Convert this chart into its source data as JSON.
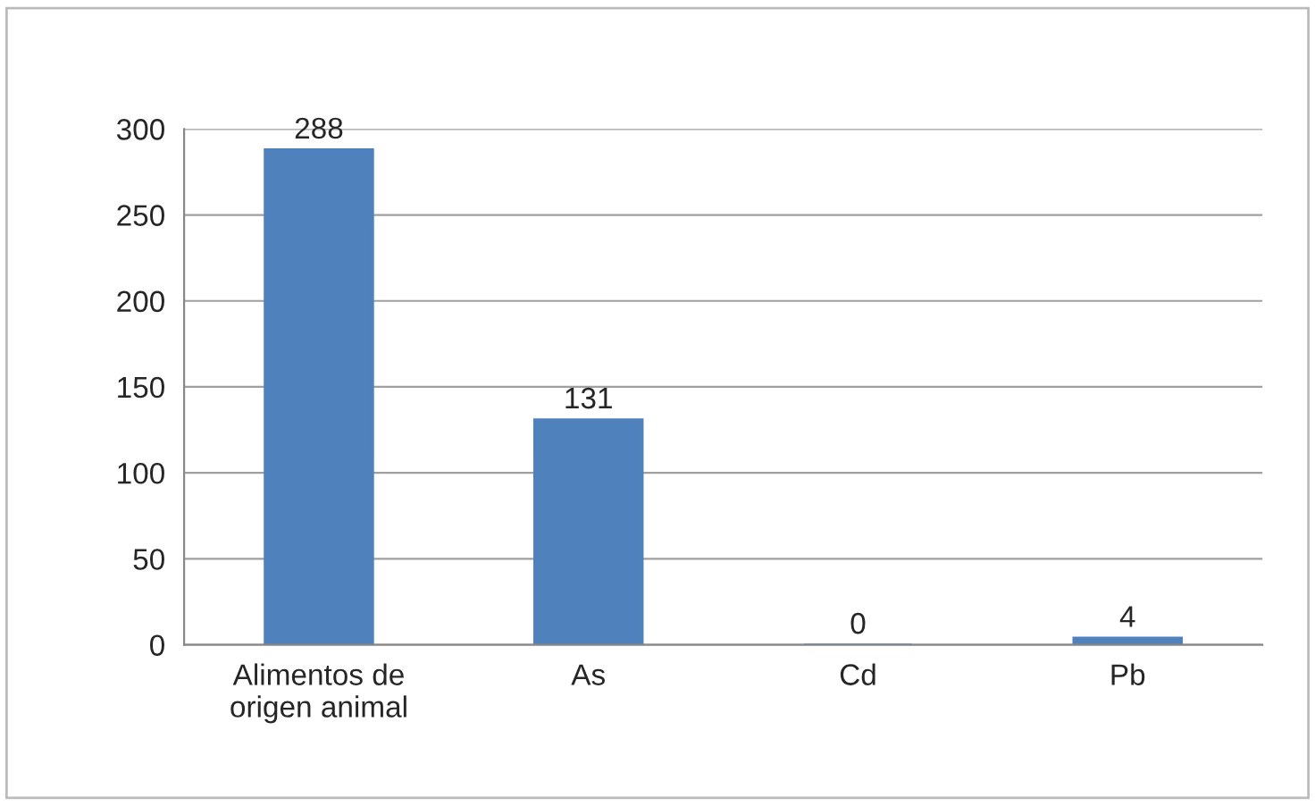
{
  "chart_data": {
    "type": "bar",
    "categories": [
      "Alimentos de\norigen animal",
      "As",
      "Cd",
      "Pb"
    ],
    "values": [
      288,
      131,
      0,
      4
    ],
    "color": "#4f81bd",
    "ylim": [
      0,
      300
    ],
    "yticks": [
      0,
      50,
      100,
      150,
      200,
      250,
      300
    ],
    "grid": "y",
    "data_labels": true
  }
}
